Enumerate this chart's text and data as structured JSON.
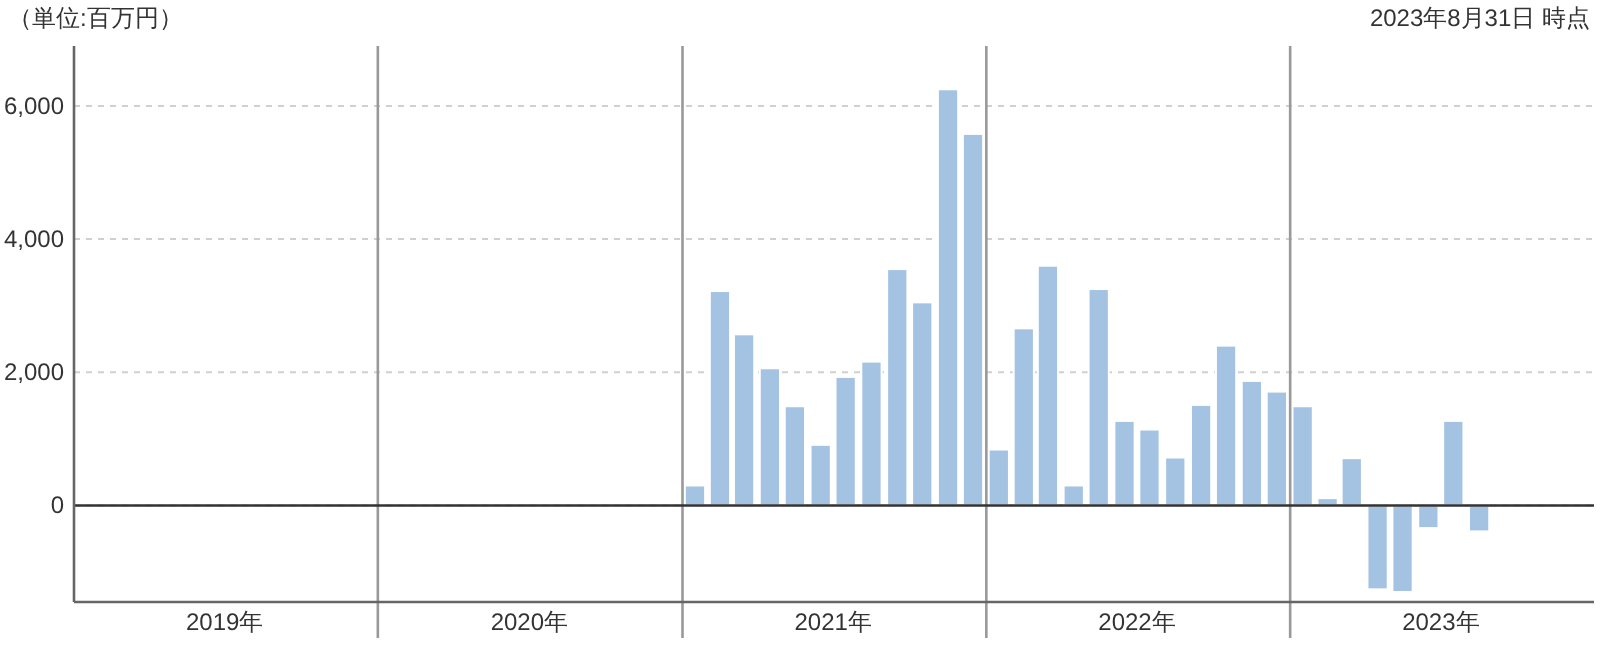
{
  "chart_data": {
    "type": "bar",
    "ylabel": "（単位:百万円）",
    "annotations": [
      "2023年8月31日 時点"
    ],
    "x": [
      "2021-01-16",
      "2021-02-15",
      "2021-03-16",
      "2021-04-16",
      "2021-05-16",
      "2021-06-16",
      "2021-07-16",
      "2021-08-16",
      "2021-09-16",
      "2021-10-16",
      "2021-11-16",
      "2021-12-16",
      "2022-01-16",
      "2022-02-15",
      "2022-03-16",
      "2022-04-16",
      "2022-05-16",
      "2022-06-16",
      "2022-07-16",
      "2022-08-16",
      "2022-09-16",
      "2022-10-16",
      "2022-11-16",
      "2022-12-16",
      "2023-01-16",
      "2023-02-15",
      "2023-03-16",
      "2023-04-16",
      "2023-05-16",
      "2023-06-16",
      "2023-07-16",
      "2023-08-16"
    ],
    "values": [
      300,
      3220,
      2570,
      2060,
      1490,
      910,
      1930,
      2160,
      3550,
      3050,
      6250,
      5580,
      840,
      2660,
      3600,
      300,
      3250,
      1270,
      1140,
      720,
      1510,
      2400,
      1870,
      1710,
      1490,
      110,
      710,
      -1260,
      -1300,
      -340,
      1270,
      -390
    ],
    "color": "#a4c3e3",
    "xlim": [
      "2019-01",
      "2024-01"
    ],
    "xticks": [
      {
        "value": "2019-07",
        "label": "2019年"
      },
      {
        "value": "2020-07",
        "label": "2020年"
      },
      {
        "value": "2021-07",
        "label": "2021年"
      },
      {
        "value": "2022-07",
        "label": "2022年"
      },
      {
        "value": "2023-07",
        "label": "2023年"
      }
    ],
    "ylim": [
      -1450,
      6900
    ],
    "yticks": [
      0,
      {
        "value": 2000,
        "label": "2,000"
      },
      {
        "value": 4000,
        "label": "4,000"
      },
      {
        "value": 6000,
        "label": "6,000"
      }
    ],
    "grid": "y",
    "ref_lines": [
      {
        "axis": "x",
        "value": "2020-01",
        "color": "#999999"
      },
      {
        "axis": "x",
        "value": "2021-01",
        "color": "#999999"
      },
      {
        "axis": "x",
        "value": "2022-01",
        "color": "#999999"
      },
      {
        "axis": "x",
        "value": "2023-01",
        "color": "#999999"
      },
      {
        "axis": "y",
        "value": 0,
        "color": "#333333"
      }
    ]
  }
}
